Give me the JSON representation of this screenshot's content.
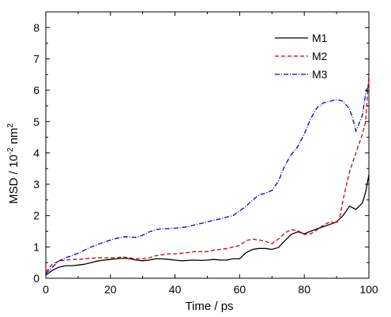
{
  "chart_data": {
    "type": "line",
    "xlabel": "Time / ps",
    "ylabel_parts": {
      "base": "MSD / 10",
      "exp1": "-2",
      "mid": " nm",
      "exp2": "2"
    },
    "xlim": [
      0,
      100
    ],
    "ylim": [
      0,
      8.5
    ],
    "xticks": [
      0,
      20,
      40,
      60,
      80,
      100
    ],
    "yticks": [
      0,
      1,
      2,
      3,
      4,
      5,
      6,
      7,
      8
    ],
    "grid": false,
    "legend_position": "top-right",
    "series": [
      {
        "name": "M1",
        "color": "#000000",
        "dash": "solid",
        "x": [
          0,
          2,
          4,
          6,
          8,
          10,
          12,
          14,
          16,
          18,
          20,
          22,
          24,
          26,
          28,
          30,
          32,
          34,
          36,
          38,
          40,
          42,
          44,
          46,
          48,
          50,
          52,
          54,
          56,
          58,
          60,
          62,
          64,
          66,
          68,
          70,
          72,
          74,
          76,
          78,
          80,
          82,
          84,
          86,
          88,
          90,
          92,
          94,
          96,
          98,
          99,
          100
        ],
        "y": [
          0.1,
          0.25,
          0.35,
          0.4,
          0.4,
          0.42,
          0.45,
          0.5,
          0.55,
          0.58,
          0.6,
          0.62,
          0.64,
          0.62,
          0.58,
          0.56,
          0.58,
          0.62,
          0.62,
          0.6,
          0.58,
          0.56,
          0.57,
          0.58,
          0.57,
          0.58,
          0.6,
          0.58,
          0.58,
          0.62,
          0.62,
          0.82,
          0.92,
          0.95,
          0.95,
          0.92,
          0.98,
          1.2,
          1.4,
          1.48,
          1.42,
          1.5,
          1.58,
          1.65,
          1.72,
          1.8,
          2.0,
          2.3,
          2.2,
          2.4,
          2.75,
          3.3
        ]
      },
      {
        "name": "M2",
        "color": "#cc0000",
        "dash": "dashed",
        "x": [
          0,
          2,
          4,
          6,
          8,
          10,
          12,
          14,
          16,
          18,
          20,
          22,
          24,
          26,
          28,
          30,
          32,
          34,
          36,
          38,
          40,
          42,
          44,
          46,
          48,
          50,
          52,
          54,
          56,
          58,
          60,
          62,
          64,
          66,
          68,
          70,
          72,
          74,
          76,
          78,
          80,
          82,
          84,
          86,
          88,
          89,
          90,
          91,
          92,
          94,
          96,
          98,
          99,
          100
        ],
        "y": [
          0.2,
          0.45,
          0.55,
          0.58,
          0.6,
          0.6,
          0.62,
          0.64,
          0.65,
          0.65,
          0.65,
          0.66,
          0.68,
          0.65,
          0.62,
          0.62,
          0.65,
          0.72,
          0.75,
          0.78,
          0.78,
          0.8,
          0.82,
          0.85,
          0.85,
          0.85,
          0.9,
          0.92,
          0.95,
          1.0,
          1.05,
          1.2,
          1.25,
          1.22,
          1.18,
          1.1,
          1.25,
          1.45,
          1.55,
          1.52,
          1.4,
          1.42,
          1.55,
          1.7,
          1.8,
          1.78,
          1.75,
          1.95,
          2.5,
          3.4,
          4.0,
          4.6,
          5.0,
          6.5
        ]
      },
      {
        "name": "M3",
        "color": "#0000cc",
        "dash": "dashdot",
        "x": [
          0,
          2,
          4,
          6,
          8,
          10,
          12,
          14,
          16,
          18,
          20,
          22,
          24,
          26,
          28,
          30,
          32,
          34,
          36,
          38,
          40,
          42,
          44,
          46,
          48,
          50,
          52,
          54,
          56,
          58,
          60,
          62,
          64,
          66,
          68,
          70,
          72,
          74,
          76,
          78,
          80,
          82,
          84,
          86,
          88,
          90,
          92,
          94,
          95,
          96,
          98,
          99,
          100
        ],
        "y": [
          0.15,
          0.35,
          0.55,
          0.65,
          0.72,
          0.8,
          0.9,
          1.0,
          1.08,
          1.15,
          1.22,
          1.28,
          1.32,
          1.32,
          1.3,
          1.38,
          1.48,
          1.55,
          1.58,
          1.58,
          1.6,
          1.62,
          1.65,
          1.7,
          1.75,
          1.8,
          1.85,
          1.9,
          1.95,
          2.0,
          2.15,
          2.3,
          2.5,
          2.65,
          2.72,
          2.8,
          3.1,
          3.6,
          3.95,
          4.2,
          4.6,
          5.1,
          5.45,
          5.6,
          5.65,
          5.7,
          5.65,
          5.4,
          5.1,
          4.7,
          5.2,
          5.9,
          6.2
        ]
      }
    ]
  }
}
